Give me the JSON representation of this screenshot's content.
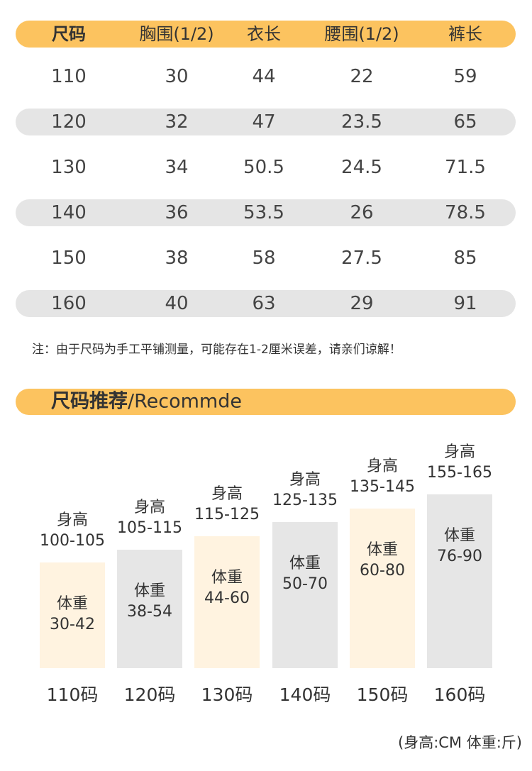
{
  "size_table": {
    "headers": [
      "尺码",
      "胸围(1/2)",
      "衣长",
      "腰围(1/2)",
      "裤长"
    ],
    "rows": [
      [
        "110",
        "30",
        "44",
        "22",
        "59"
      ],
      [
        "120",
        "32",
        "47",
        "23.5",
        "65"
      ],
      [
        "130",
        "34",
        "50.5",
        "24.5",
        "71.5"
      ],
      [
        "140",
        "36",
        "53.5",
        "26",
        "78.5"
      ],
      [
        "150",
        "38",
        "58",
        "27.5",
        "85"
      ],
      [
        "160",
        "40",
        "63",
        "29",
        "91"
      ]
    ],
    "note": "注：由于尺码为手工平铺测量，可能存在1-2厘米误差，请亲们谅解！"
  },
  "recommend": {
    "title_main": "尺码推荐",
    "title_sub": "/Recommde",
    "height_label": "身高",
    "weight_label": "体重",
    "units_note": "(身高:CM  体重:斤)"
  },
  "chart_data": {
    "type": "bar",
    "categories": [
      "110码",
      "120码",
      "130码",
      "140码",
      "150码",
      "160码"
    ],
    "series": [
      {
        "name": "身高",
        "values": [
          "100-105",
          "105-115",
          "115-125",
          "125-135",
          "135-145",
          "155-165"
        ]
      },
      {
        "name": "体重",
        "values": [
          "30-42",
          "38-54",
          "44-60",
          "50-70",
          "60-80",
          "76-90"
        ]
      }
    ],
    "relative_levels": [
      0.61,
      0.68,
      0.76,
      0.84,
      0.92,
      1.0
    ],
    "fill_colors": [
      "#fff3e0",
      "#e6e6e6",
      "#fff3e0",
      "#e6e6e6",
      "#fff3e0",
      "#e6e6e6"
    ]
  },
  "colors": {
    "accent": "#fcc35f",
    "row_stripe": "#e5e5e5"
  }
}
